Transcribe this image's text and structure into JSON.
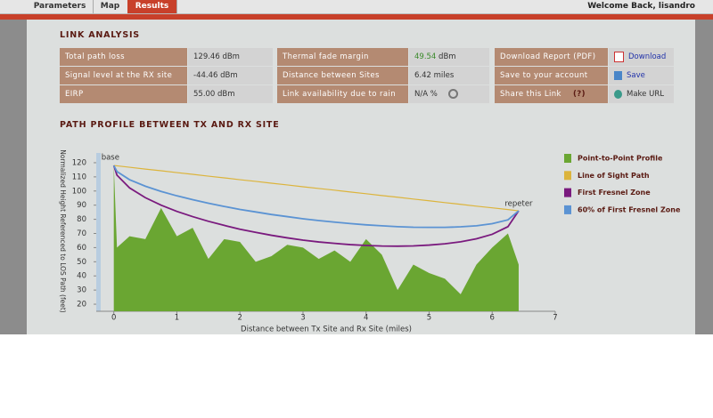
{
  "tabs": [
    "Parameters",
    "Map",
    "Results"
  ],
  "active_tab": 2,
  "welcome": "Welcome Back, lisandro",
  "link_analysis": {
    "title": "LINK ANALYSIS",
    "tables": [
      [
        {
          "label": "Total path loss",
          "value": "129.46 dBm"
        },
        {
          "label": "Signal level at the RX site",
          "value": "-44.46 dBm"
        },
        {
          "label": "EIRP",
          "value": "55.00 dBm"
        }
      ],
      [
        {
          "label": "Thermal fade margin",
          "value": "49.54",
          "unit": "dBm"
        },
        {
          "label": "Distance between Sites",
          "value": "6.42 miles"
        },
        {
          "label": "Link availability due to rain",
          "value": "N/A %"
        }
      ],
      [
        {
          "label": "Download Report (PDF)",
          "value": "Download"
        },
        {
          "label": "Save to your account",
          "value": "Save"
        },
        {
          "label": "Share this Link",
          "help": "(?)",
          "value": "Make URL"
        }
      ]
    ]
  },
  "path_profile_title": "PATH PROFILE BETWEEN TX AND RX SITE",
  "chart_data": {
    "type": "line",
    "x_label": "Distance between Tx Site and Rx Site (miles)",
    "y_label": "Normalized Height Referenced to LOS Path (feet)",
    "annotations": [
      "base",
      "repeter"
    ],
    "x": [
      0,
      0.05,
      0.25,
      0.5,
      0.75,
      1,
      1.25,
      1.5,
      1.75,
      2,
      2.25,
      2.5,
      2.75,
      3,
      3.25,
      3.5,
      3.75,
      4,
      4.25,
      4.5,
      4.75,
      5,
      5.25,
      5.5,
      5.75,
      6,
      6.25,
      6.42
    ],
    "series": [
      {
        "name": "Point-to-Point Profile",
        "color": "#6aa632",
        "area": true,
        "values": [
          118,
          60,
          68,
          66,
          88,
          68,
          74,
          52,
          66,
          64,
          50,
          54,
          62,
          60,
          52,
          58,
          50,
          66,
          55,
          30,
          48,
          42,
          38,
          27,
          48,
          60,
          70,
          48
        ]
      },
      {
        "name": "Line of Sight Path",
        "color": "#dcb43c",
        "values": [
          118,
          117.8,
          116.8,
          115.5,
          114.3,
          113.0,
          111.8,
          110.5,
          109.3,
          108.0,
          106.8,
          105.5,
          104.3,
          103.0,
          101.8,
          100.6,
          99.3,
          98.1,
          96.8,
          95.6,
          94.3,
          93.1,
          91.8,
          90.6,
          89.3,
          88.1,
          86.9,
          86
        ]
      },
      {
        "name": "First Fresnel Zone",
        "color": "#7a1a7e",
        "values": [
          118,
          111.2,
          102.2,
          95.3,
          90.0,
          85.6,
          81.9,
          78.6,
          75.7,
          73.0,
          70.8,
          68.7,
          66.9,
          65.3,
          64.0,
          63.0,
          62.1,
          61.5,
          61.1,
          61.0,
          61.2,
          61.8,
          62.7,
          64.1,
          66.2,
          69.4,
          74.8,
          86
        ]
      },
      {
        "name": "60% of First Fresnel Zone",
        "color": "#5b93d3",
        "values": [
          118,
          113.8,
          108.0,
          103.4,
          99.7,
          96.6,
          93.9,
          91.4,
          89.1,
          87.0,
          85.2,
          83.4,
          81.9,
          80.4,
          79.1,
          78.0,
          77.0,
          76.1,
          75.4,
          74.8,
          74.4,
          74.3,
          74.3,
          74.7,
          75.4,
          76.9,
          79.6,
          86
        ]
      }
    ],
    "xlim": [
      -0.25,
      7
    ],
    "xticks": [
      0,
      1,
      2,
      3,
      4,
      5,
      6,
      7
    ],
    "ylim": [
      15,
      125
    ],
    "yticks": [
      20,
      30,
      40,
      50,
      60,
      70,
      80,
      90,
      100,
      110,
      120
    ],
    "grid": false,
    "legend": "right"
  }
}
